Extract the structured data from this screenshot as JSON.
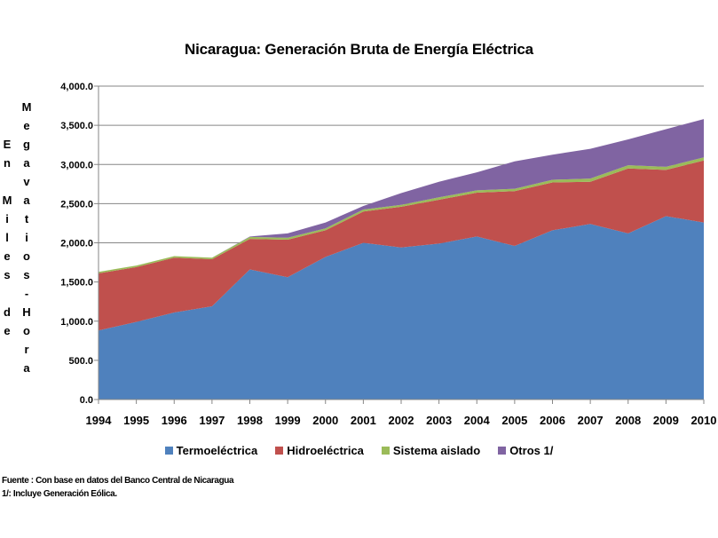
{
  "chart_data": {
    "type": "area",
    "stacked": true,
    "title": "Nicaragua: Generación Bruta de Energía Eléctrica",
    "ylabel_left": "En Miles de",
    "ylabel_right": "Megavatios-Hora",
    "xlabel": "",
    "categories": [
      "1994",
      "1995",
      "1996",
      "1997",
      "1998",
      "1999",
      "2000",
      "2001",
      "2002",
      "2003",
      "2004",
      "2005",
      "2006",
      "2007",
      "2008",
      "2009",
      "2010"
    ],
    "ylim": [
      0,
      4000
    ],
    "yticks": [
      "0.0",
      "500.0",
      "1,000.0",
      "1,500.0",
      "2,000.0",
      "2,500.0",
      "3,000.0",
      "3,500.0",
      "4,000.0"
    ],
    "ytick_values": [
      0,
      500,
      1000,
      1500,
      2000,
      2500,
      3000,
      3500,
      4000
    ],
    "grid": true,
    "legend_position": "bottom",
    "series": [
      {
        "name": "Termoeléctrica",
        "color": "#4F81BD",
        "values": [
          880,
          990,
          1110,
          1190,
          1660,
          1560,
          1820,
          2000,
          1940,
          1990,
          2080,
          1960,
          2160,
          2240,
          2120,
          2340,
          2260
        ]
      },
      {
        "name": "Hidroeléctrica",
        "color": "#C0504D",
        "values": [
          730,
          700,
          700,
          600,
          390,
          480,
          340,
          400,
          520,
          560,
          560,
          700,
          610,
          540,
          830,
          590,
          790
        ]
      },
      {
        "name": "Sistema aislado",
        "color": "#9BBB59",
        "values": [
          20,
          20,
          20,
          20,
          25,
          25,
          25,
          25,
          25,
          30,
          30,
          30,
          35,
          40,
          40,
          40,
          40
        ]
      },
      {
        "name": "Otros 1/",
        "color": "#8064A2",
        "values": [
          0,
          0,
          0,
          0,
          5,
          55,
          75,
          45,
          150,
          200,
          230,
          350,
          320,
          380,
          330,
          480,
          490
        ]
      }
    ]
  },
  "notes": {
    "source": "Fuente : Con base en datos del Banco Central de Nicaragua",
    "footnote": "1/: Incluye Generación Eólica."
  }
}
